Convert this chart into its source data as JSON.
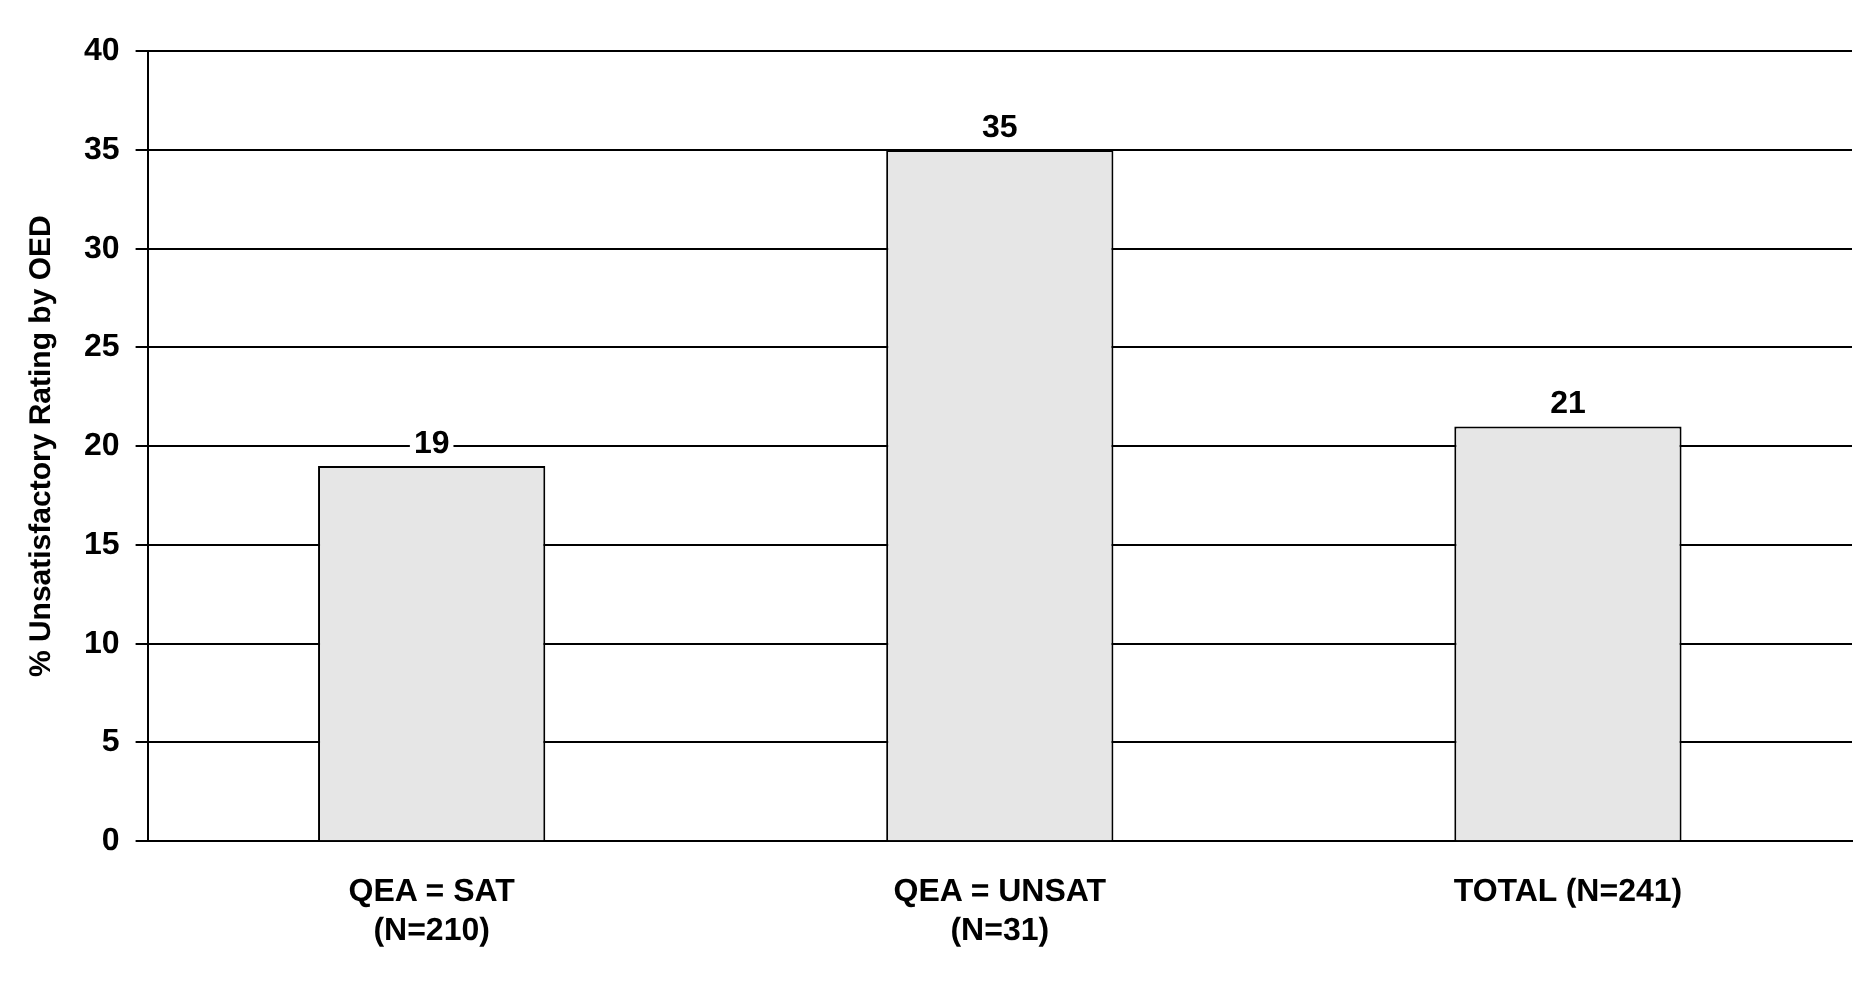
{
  "chart_data": {
    "type": "bar",
    "ylabel": "% Unsatisfactory Rating by OED",
    "categories": [
      "QEA = SAT\n(N=210)",
      "QEA = UNSAT\n(N=31)",
      "TOTAL (N=241)"
    ],
    "values": [
      19,
      35,
      21
    ],
    "color": "#e6e6e6",
    "ylim": [
      0,
      40
    ],
    "yticks": [
      0,
      5,
      10,
      15,
      20,
      25,
      30,
      35,
      40
    ],
    "grid": "y",
    "data_labels": true,
    "legend": false
  }
}
